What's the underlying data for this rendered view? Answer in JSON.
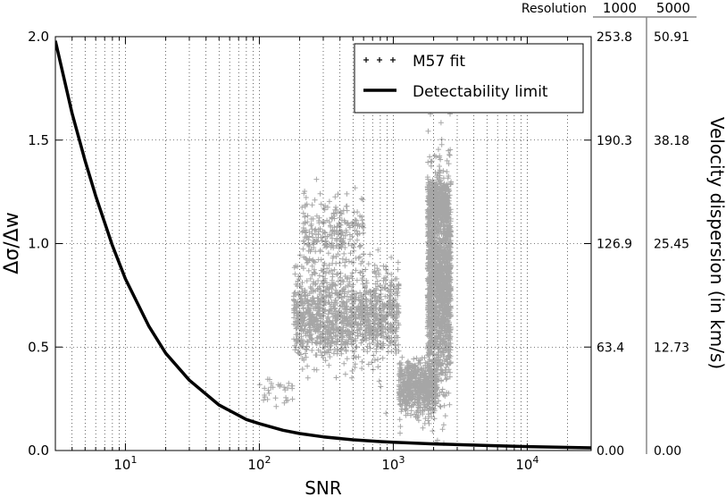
{
  "chart_data": {
    "type": "scatter",
    "x_scale": "log",
    "xlim": [
      3,
      30000
    ],
    "ylim": [
      0,
      2.0
    ],
    "xlabel": "SNR",
    "ylabel": "Δσ/Δw",
    "grid": true,
    "legend_position": "upper-right",
    "x_ticks": [
      {
        "value": 10,
        "base": "10",
        "exp": "1"
      },
      {
        "value": 100,
        "base": "10",
        "exp": "2"
      },
      {
        "value": 1000,
        "base": "10",
        "exp": "3"
      },
      {
        "value": 10000,
        "base": "10",
        "exp": "4"
      }
    ],
    "y_ticks": [
      {
        "value": 0.0,
        "label": "0.0"
      },
      {
        "value": 0.5,
        "label": "0.5"
      },
      {
        "value": 1.0,
        "label": "1.0"
      },
      {
        "value": 1.5,
        "label": "1.5"
      },
      {
        "value": 2.0,
        "label": "2.0"
      }
    ],
    "right_axes": {
      "header": "Resolution",
      "label": "Velocity dispersion (in km/s)",
      "columns": [
        {
          "resolution": "1000",
          "ticks": [
            "253.8",
            "190.3",
            "126.9",
            "63.4",
            "0.00"
          ]
        },
        {
          "resolution": "5000",
          "ticks": [
            "50.91",
            "38.18",
            "25.45",
            "12.73",
            "0.00"
          ]
        }
      ],
      "tick_values": [
        2.0,
        1.5,
        1.0,
        0.5,
        0.0
      ]
    },
    "series": [
      {
        "name": "Detectability limit",
        "kind": "line",
        "color": "#000000",
        "x": [
          3,
          4,
          5,
          6,
          8,
          10,
          15,
          20,
          30,
          50,
          80,
          100,
          150,
          200,
          300,
          500,
          800,
          1000,
          2000,
          5000,
          10000,
          30000
        ],
        "y": [
          1.98,
          1.63,
          1.4,
          1.23,
          0.99,
          0.83,
          0.6,
          0.47,
          0.34,
          0.22,
          0.15,
          0.13,
          0.098,
          0.082,
          0.066,
          0.052,
          0.043,
          0.04,
          0.032,
          0.024,
          0.019,
          0.013
        ]
      },
      {
        "name": "M57 fit",
        "kind": "scatter",
        "marker": "+",
        "color": "#000000",
        "clusters": [
          {
            "x_range": [
              180,
              1100
            ],
            "y_center": 0.65,
            "y_spread": 0.22,
            "points": 1300
          },
          {
            "x_range": [
              200,
              600
            ],
            "y_center": 1.05,
            "y_spread": 0.18,
            "points": 260
          },
          {
            "x_range": [
              1100,
              2100
            ],
            "y_center": 0.3,
            "y_spread": 0.13,
            "points": 650
          },
          {
            "x_range": [
              1800,
              2700
            ],
            "y_center": 0.8,
            "y_spread": 0.5,
            "points": 1600
          },
          {
            "x_range": [
              1800,
              2600
            ],
            "y_center": 1.2,
            "y_spread": 0.1,
            "points": 420
          },
          {
            "x_range": [
              100,
              180
            ],
            "y_center": 0.3,
            "y_spread": 0.08,
            "points": 30
          }
        ]
      }
    ]
  }
}
